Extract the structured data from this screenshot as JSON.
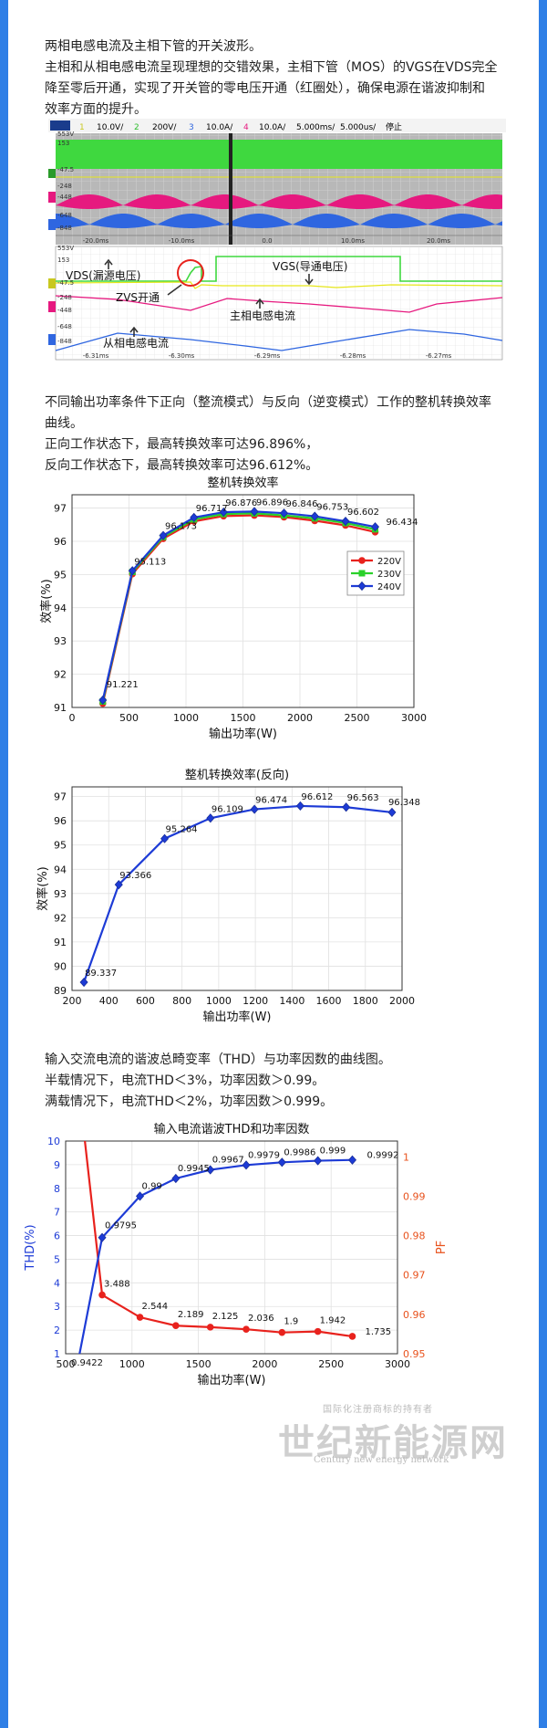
{
  "section1": {
    "title": "两相电感电流及主相下管的开关波形。",
    "lines": [
      "主相和从相电感电流呈现理想的交错效果，主相下管（MOS）的VGS在VDS完全",
      "降至零后开通，实现了开关管的零电压开通（红圈处），确保电源在谐波抑制和",
      "效率方面的提升。"
    ]
  },
  "scope": {
    "header": {
      "ch1": "1",
      "ch1_scale": "10.0V/",
      "ch2": "2",
      "ch2_scale": "200V/",
      "ch3": "3",
      "ch3_scale": "10.0A/",
      "ch4": "4",
      "ch4_scale": "10.0A/",
      "time1": "5.000ms/",
      "time2": "5.000us/",
      "state": "停止"
    },
    "side_top": [
      "553V",
      "153",
      "-47.5",
      "-248",
      "-448",
      "-648",
      "-848"
    ],
    "time_top": [
      "-20.0ms",
      "-10.0ms",
      "0.0",
      "10.0ms",
      "20.0ms"
    ],
    "side_bottom": [
      "553V",
      "153",
      "-47.5",
      "-248",
      "-448",
      "-648",
      "-848"
    ],
    "time_bottom": [
      "-6.31ms",
      "-6.30ms",
      "-6.29ms",
      "-6.28ms",
      "-6.27ms"
    ],
    "annotations": {
      "vds": "VDS(漏源电压)",
      "vgs": "VGS(导通电压)",
      "zvs": "ZVS开通",
      "main_current": "主相电感电流",
      "slave_current": "从相电感电流"
    },
    "colors": {
      "ch1": "#e6e619",
      "ch2": "#33cc33",
      "ch3": "#2f66e0",
      "ch4": "#e6197f"
    }
  },
  "section2": {
    "lines": [
      "不同输出功率条件下正向（整流模式）与反向（逆变模式）工作的整机转换效率",
      "曲线。",
      "正向工作状态下，最高转换效率可达96.896%，",
      "反向工作状态下，最高转换效率可达96.612%。"
    ]
  },
  "chart_data": [
    {
      "type": "line",
      "title": "整机转换效率",
      "xlabel": "输出功率(W)",
      "ylabel": "效率(%)",
      "xlim": [
        0,
        3000
      ],
      "ylim": [
        91,
        97.4
      ],
      "xticks": [
        0,
        500,
        1000,
        1500,
        2000,
        2500,
        3000
      ],
      "yticks": [
        91,
        92,
        93,
        94,
        95,
        96,
        97
      ],
      "x": [
        270,
        530,
        800,
        1070,
        1330,
        1600,
        1860,
        2130,
        2400,
        2660
      ],
      "series": [
        {
          "name": "220V",
          "color": "#e8221d",
          "values": [
            91.12,
            95.02,
            96.08,
            96.6,
            96.76,
            96.78,
            96.73,
            96.62,
            96.48,
            96.28
          ]
        },
        {
          "name": "230V",
          "color": "#2ad12a",
          "values": [
            91.18,
            95.08,
            96.13,
            96.66,
            96.82,
            96.84,
            96.78,
            96.69,
            96.55,
            96.36
          ]
        },
        {
          "name": "240V",
          "color": "#1d3bd6",
          "values": [
            91.221,
            95.113,
            96.173,
            96.717,
            96.876,
            96.896,
            96.846,
            96.753,
            96.602,
            96.434
          ]
        }
      ],
      "data_labels": [
        "91.221",
        "95.113",
        "96.173",
        "96.717",
        "96.876",
        "96.896",
        "96.846",
        "96.753",
        "96.602",
        "96.434"
      ],
      "legend": "right"
    },
    {
      "type": "line",
      "title": "整机转换效率(反向)",
      "xlabel": "输出功率(W)",
      "ylabel": "效率(%)",
      "xlim": [
        200,
        2000
      ],
      "ylim": [
        89,
        97.4
      ],
      "xticks": [
        200,
        400,
        600,
        800,
        1000,
        1200,
        1400,
        1600,
        1800,
        2000
      ],
      "yticks": [
        89,
        90,
        91,
        92,
        93,
        94,
        95,
        96,
        97
      ],
      "x": [
        265,
        455,
        705,
        955,
        1195,
        1445,
        1695,
        1945
      ],
      "series": [
        {
          "name": "",
          "color": "#1d3bd6",
          "values": [
            89.337,
            93.366,
            95.264,
            96.109,
            96.474,
            96.612,
            96.563,
            96.348
          ]
        }
      ],
      "data_labels": [
        "89.337",
        "93.366",
        "95.264",
        "96.109",
        "96.474",
        "96.612",
        "96.563",
        "96.348"
      ]
    },
    {
      "type": "line",
      "title": "输入电流谐波THD和功率因数",
      "xlabel": "输出功率(W)",
      "ylabel": "THD(%)",
      "y2label": "PF",
      "xlim": [
        500,
        3000
      ],
      "ylim": [
        1,
        10
      ],
      "y2lim": [
        0.95,
        1.004
      ],
      "xticks": [
        500,
        1000,
        1500,
        2000,
        2500,
        3000
      ],
      "yticks": [
        1,
        2,
        3,
        4,
        5,
        6,
        7,
        8,
        9,
        10
      ],
      "y2ticks": [
        0.95,
        0.96,
        0.97,
        0.98,
        0.99,
        1
      ],
      "series": [
        {
          "name": "THD",
          "axis": "left",
          "color": "#e8221d",
          "x": [
            775,
            1060,
            1330,
            1590,
            1860,
            2130,
            2400,
            2660
          ],
          "values": [
            3.488,
            2.544,
            2.189,
            2.125,
            2.036,
            1.9,
            1.942,
            1.735
          ],
          "data_labels": [
            "3.488",
            "2.544",
            "2.189",
            "2.125",
            "2.036",
            "1.9",
            "1.942",
            "1.735"
          ]
        },
        {
          "name": "PF",
          "axis": "right",
          "color": "#1d3bd6",
          "x": [
            775,
            1060,
            1330,
            1590,
            1860,
            2130,
            2400,
            2660
          ],
          "values": [
            0.9795,
            0.99,
            0.9945,
            0.9967,
            0.9979,
            0.9986,
            0.999,
            0.9992
          ],
          "data_labels": [
            "0.9795",
            "0.99",
            "0.9945",
            "0.9967",
            "0.9979",
            "0.9986",
            "0.999",
            "0.9992"
          ]
        }
      ],
      "pf_left_label": "0.9422",
      "axis_colors": {
        "left": "#1d3bd6",
        "right": "#e8521d"
      }
    }
  ],
  "section3": {
    "lines": [
      "输入交流电流的谐波总畸变率（THD）与功率因数的曲线图。",
      "半载情况下，电流THD＜3%，功率因数＞0.99。",
      "满载情况下，电流THD＜2%，功率因数＞0.999。"
    ]
  },
  "watermark": {
    "text": "世纪新能源网",
    "sub": "Century new energy network",
    "top": "国际化注册商标的持有者"
  }
}
